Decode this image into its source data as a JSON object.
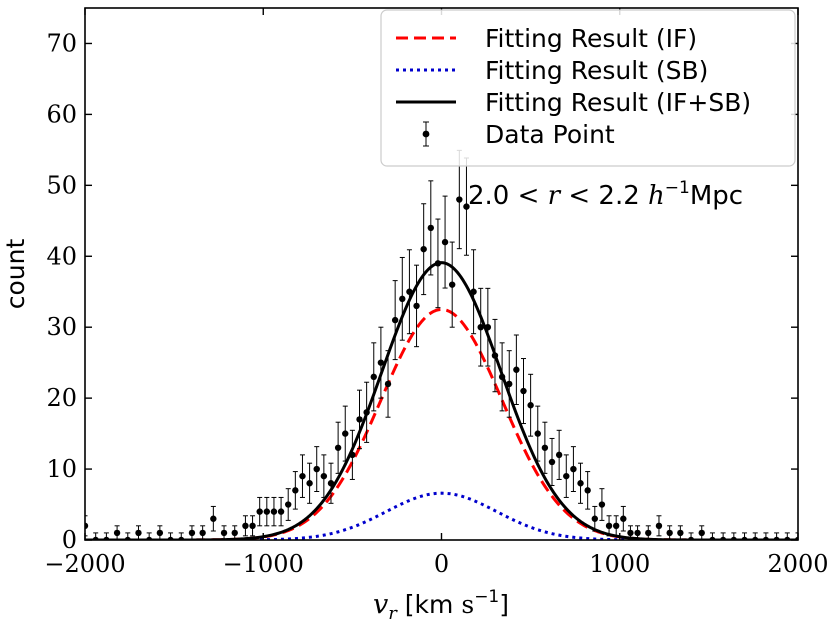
{
  "chart_data": {
    "type": "scatter",
    "xlabel": "v_r [km s^-1]",
    "ylabel": "count",
    "xlim": [
      -2000,
      2000
    ],
    "ylim": [
      0,
      75
    ],
    "x_ticks": [
      -2000,
      -1000,
      0,
      1000,
      2000
    ],
    "y_ticks": [
      0,
      10,
      20,
      30,
      40,
      50,
      60,
      70
    ],
    "annotation": "2.0 < r < 2.2 h^-1 Mpc",
    "legend_position": "top-right",
    "legend": [
      {
        "label": "Fitting Result (IF)",
        "style": "dashed",
        "color": "#ff0000"
      },
      {
        "label": "Fitting Result (SB)",
        "style": "dotted",
        "color": "#0000cc"
      },
      {
        "label": "Fitting Result (IF+SB)",
        "style": "solid",
        "color": "#000000"
      },
      {
        "label": "Data Point",
        "style": "errorbar-marker",
        "color": "#000000"
      }
    ],
    "series": [
      {
        "name": "Fitting Result (IF)",
        "kind": "gaussian",
        "amplitude": 32.5,
        "mean": 0,
        "sigma": 340
      },
      {
        "name": "Fitting Result (SB)",
        "kind": "gaussian",
        "amplitude": 6.6,
        "mean": 0,
        "sigma": 310
      },
      {
        "name": "Fitting Result (IF+SB)",
        "kind": "sum",
        "of": [
          "Fitting Result (IF)",
          "Fitting Result (SB)"
        ]
      }
    ],
    "data_points": {
      "x": [
        -2000,
        -1940,
        -1880,
        -1820,
        -1760,
        -1700,
        -1640,
        -1580,
        -1520,
        -1460,
        -1400,
        -1340,
        -1280,
        -1220,
        -1160,
        -1100,
        -1060,
        -1020,
        -980,
        -940,
        -900,
        -860,
        -820,
        -780,
        -740,
        -700,
        -660,
        -620,
        -580,
        -540,
        -500,
        -460,
        -420,
        -380,
        -340,
        -300,
        -260,
        -220,
        -180,
        -140,
        -100,
        -60,
        -20,
        20,
        60,
        100,
        140,
        180,
        220,
        260,
        300,
        340,
        380,
        420,
        460,
        500,
        540,
        580,
        620,
        660,
        700,
        740,
        780,
        820,
        860,
        900,
        940,
        980,
        1020,
        1060,
        1100,
        1160,
        1220,
        1280,
        1340,
        1400,
        1460,
        1520,
        1580,
        1640,
        1700,
        1760,
        1820,
        1880,
        1940,
        2000
      ],
      "y": [
        2,
        0,
        0,
        1,
        0,
        1,
        0,
        1,
        0,
        0,
        1,
        1,
        3,
        1,
        1,
        2,
        2,
        4,
        4,
        4,
        4,
        5,
        7,
        9,
        8,
        10,
        9,
        8,
        13,
        15,
        12,
        17,
        18,
        23,
        25,
        22,
        31,
        34,
        35,
        33,
        41,
        44,
        39,
        42,
        36,
        48,
        47,
        35,
        30,
        30,
        26,
        23,
        22,
        24,
        21,
        19,
        15,
        13,
        11,
        12,
        9,
        10,
        8,
        7,
        3,
        5,
        2,
        2,
        3,
        1,
        1,
        1,
        2,
        1,
        1,
        0,
        1,
        0,
        0,
        0,
        0,
        0,
        0,
        0,
        0,
        0
      ],
      "y_error": "poisson_sqrt_n"
    }
  }
}
